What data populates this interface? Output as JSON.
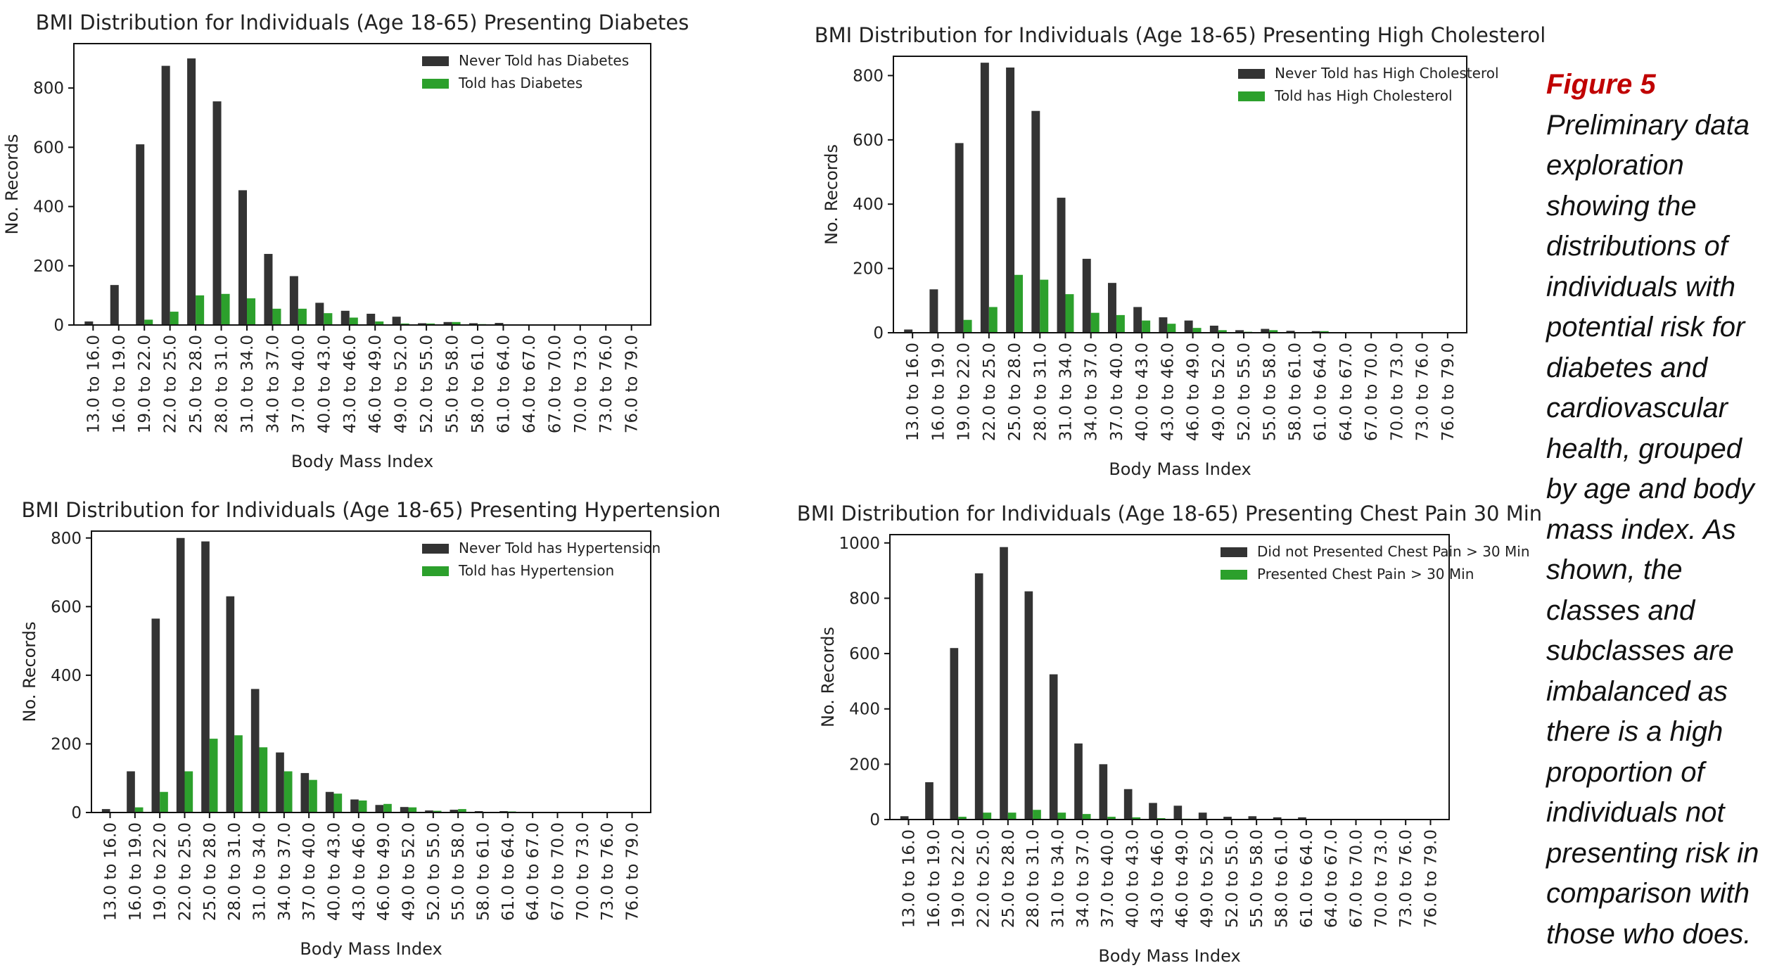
{
  "caption": {
    "figure_label": "Figure 5",
    "text": "Preliminary data exploration showing the distributions of individuals with potential risk for diabetes and cardiovascular health, grouped by age and body mass index. As shown, the classes and subclasses are imbalanced as there is a high proportion of individuals not presenting risk in comparison with those who does."
  },
  "colors": {
    "series_a": "#333333",
    "series_b": "#2ca02c"
  },
  "chart_data": [
    {
      "type": "bar",
      "title": "BMI Distribution for Individuals (Age 18-65) Presenting Diabetes",
      "xlabel": "Body Mass Index",
      "ylabel": "No. Records",
      "ylim": [
        0,
        950
      ],
      "yticks": [
        0,
        200,
        400,
        600,
        800
      ],
      "legend_position": "top-right",
      "categories": [
        "13.0 to 16.0",
        "16.0 to 19.0",
        "19.0 to 22.0",
        "22.0 to 25.0",
        "25.0 to 28.0",
        "28.0 to 31.0",
        "31.0 to 34.0",
        "34.0 to 37.0",
        "37.0 to 40.0",
        "40.0 to 43.0",
        "43.0 to 46.0",
        "46.0 to 49.0",
        "49.0 to 52.0",
        "52.0 to 55.0",
        "55.0 to 58.0",
        "58.0 to 61.0",
        "61.0 to 64.0",
        "64.0 to 67.0",
        "67.0 to 70.0",
        "70.0 to 73.0",
        "73.0 to 76.0",
        "76.0 to 79.0"
      ],
      "series": [
        {
          "name": "Never Told has Diabetes",
          "values": [
            12,
            135,
            610,
            875,
            900,
            755,
            455,
            240,
            165,
            75,
            48,
            38,
            28,
            6,
            10,
            6,
            7,
            2,
            2,
            1,
            1,
            1
          ]
        },
        {
          "name": "Told has Diabetes",
          "values": [
            0,
            2,
            18,
            45,
            100,
            105,
            90,
            55,
            55,
            40,
            25,
            12,
            5,
            5,
            10,
            3,
            1,
            1,
            0,
            0,
            0,
            0
          ]
        }
      ]
    },
    {
      "type": "bar",
      "title": "BMI Distribution for Individuals (Age 18-65) Presenting High Cholesterol",
      "xlabel": "Body Mass Index",
      "ylabel": "No. Records",
      "ylim": [
        0,
        860
      ],
      "yticks": [
        0,
        200,
        400,
        600,
        800
      ],
      "legend_position": "top-right",
      "categories": [
        "13.0 to 16.0",
        "16.0 to 19.0",
        "19.0 to 22.0",
        "22.0 to 25.0",
        "25.0 to 28.0",
        "28.0 to 31.0",
        "31.0 to 34.0",
        "34.0 to 37.0",
        "37.0 to 40.0",
        "40.0 to 43.0",
        "43.0 to 46.0",
        "46.0 to 49.0",
        "49.0 to 52.0",
        "52.0 to 55.0",
        "55.0 to 58.0",
        "58.0 to 61.0",
        "61.0 to 64.0",
        "64.0 to 67.0",
        "67.0 to 70.0",
        "70.0 to 73.0",
        "73.0 to 76.0",
        "76.0 to 79.0"
      ],
      "series": [
        {
          "name": "Never Told has High Cholesterol",
          "values": [
            10,
            135,
            590,
            840,
            825,
            690,
            420,
            230,
            155,
            80,
            48,
            38,
            22,
            8,
            12,
            6,
            5,
            2,
            2,
            1,
            1,
            1
          ]
        },
        {
          "name": "Told has High Cholesterol",
          "values": [
            0,
            2,
            40,
            80,
            180,
            165,
            120,
            62,
            55,
            38,
            28,
            15,
            8,
            3,
            8,
            2,
            5,
            0,
            0,
            0,
            0,
            0
          ]
        }
      ]
    },
    {
      "type": "bar",
      "title": "BMI Distribution for Individuals (Age 18-65) Presenting Hypertension",
      "xlabel": "Body Mass Index",
      "ylabel": "No. Records",
      "ylim": [
        0,
        820
      ],
      "yticks": [
        0,
        200,
        400,
        600,
        800
      ],
      "legend_position": "top-right",
      "categories": [
        "13.0 to 16.0",
        "16.0 to 19.0",
        "19.0 to 22.0",
        "22.0 to 25.0",
        "25.0 to 28.0",
        "28.0 to 31.0",
        "31.0 to 34.0",
        "34.0 to 37.0",
        "37.0 to 40.0",
        "40.0 to 43.0",
        "43.0 to 46.0",
        "46.0 to 49.0",
        "49.0 to 52.0",
        "52.0 to 55.0",
        "55.0 to 58.0",
        "58.0 to 61.0",
        "61.0 to 64.0",
        "64.0 to 67.0",
        "67.0 to 70.0",
        "70.0 to 73.0",
        "73.0 to 76.0",
        "76.0 to 79.0"
      ],
      "series": [
        {
          "name": "Never Told has Hypertension",
          "values": [
            10,
            120,
            565,
            800,
            790,
            630,
            360,
            175,
            115,
            60,
            38,
            22,
            16,
            6,
            8,
            4,
            4,
            2,
            1,
            1,
            1,
            1
          ]
        },
        {
          "name": "Told has Hypertension",
          "values": [
            0,
            15,
            60,
            120,
            215,
            225,
            190,
            120,
            95,
            55,
            35,
            25,
            15,
            5,
            10,
            2,
            3,
            0,
            0,
            0,
            0,
            0
          ]
        }
      ]
    },
    {
      "type": "bar",
      "title": "BMI Distribution for Individuals (Age 18-65) Presenting Chest Pain 30 Min",
      "xlabel": "Body Mass Index",
      "ylabel": "No. Records",
      "ylim": [
        0,
        1030
      ],
      "yticks": [
        0,
        200,
        400,
        600,
        800,
        1000
      ],
      "legend_position": "top-right",
      "categories": [
        "13.0 to 16.0",
        "16.0 to 19.0",
        "19.0 to 22.0",
        "22.0 to 25.0",
        "25.0 to 28.0",
        "28.0 to 31.0",
        "31.0 to 34.0",
        "34.0 to 37.0",
        "37.0 to 40.0",
        "40.0 to 43.0",
        "43.0 to 46.0",
        "46.0 to 49.0",
        "49.0 to 52.0",
        "52.0 to 55.0",
        "55.0 to 58.0",
        "58.0 to 61.0",
        "61.0 to 64.0",
        "64.0 to 67.0",
        "67.0 to 70.0",
        "70.0 to 73.0",
        "73.0 to 76.0",
        "76.0 to 79.0"
      ],
      "series": [
        {
          "name": "Did not Presented Chest Pain > 30 Min",
          "values": [
            12,
            135,
            620,
            890,
            985,
            825,
            525,
            275,
            200,
            110,
            60,
            50,
            25,
            10,
            12,
            8,
            8,
            2,
            2,
            1,
            1,
            1
          ]
        },
        {
          "name": "Presented Chest Pain > 30 Min",
          "values": [
            0,
            0,
            10,
            25,
            25,
            35,
            25,
            20,
            10,
            8,
            5,
            3,
            2,
            1,
            0,
            0,
            0,
            0,
            0,
            0,
            0,
            0
          ]
        }
      ]
    }
  ]
}
